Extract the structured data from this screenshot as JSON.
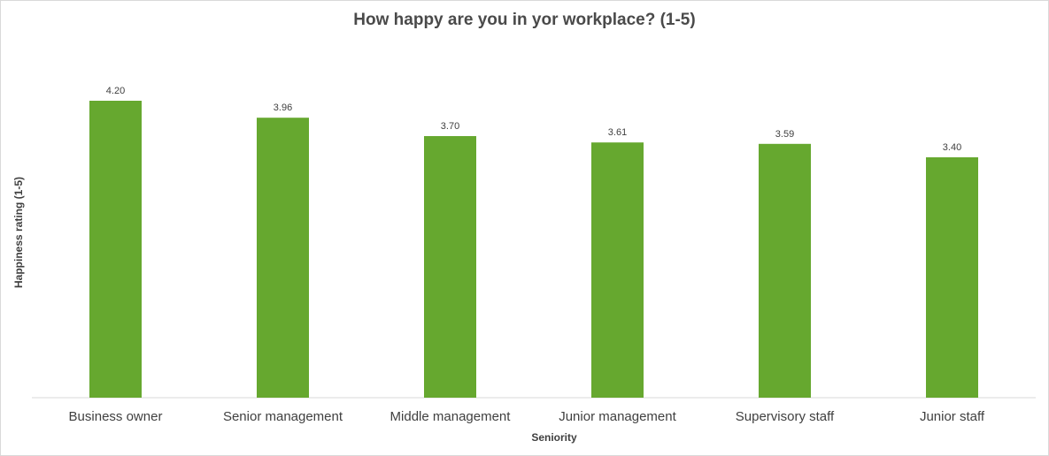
{
  "chart_data": {
    "type": "bar",
    "title": "How happy are you in yor workplace? (1-5)",
    "xlabel": "Seniority",
    "ylabel": "Happiness rating (1-5)",
    "categories": [
      "Business owner",
      "Senior management",
      "Middle management",
      "Junior management",
      "Supervisory staff",
      "Junior staff"
    ],
    "values": [
      4.2,
      3.96,
      3.7,
      3.61,
      3.59,
      3.4
    ],
    "data_labels": [
      "4.20",
      "3.96",
      "3.70",
      "3.61",
      "3.59",
      "3.40"
    ],
    "ylim": [
      0,
      4.2
    ],
    "grid": false,
    "legend": "none",
    "bar_color": "#66a82f",
    "axis_color": "#d9d9d9",
    "label_color": "#404040"
  }
}
